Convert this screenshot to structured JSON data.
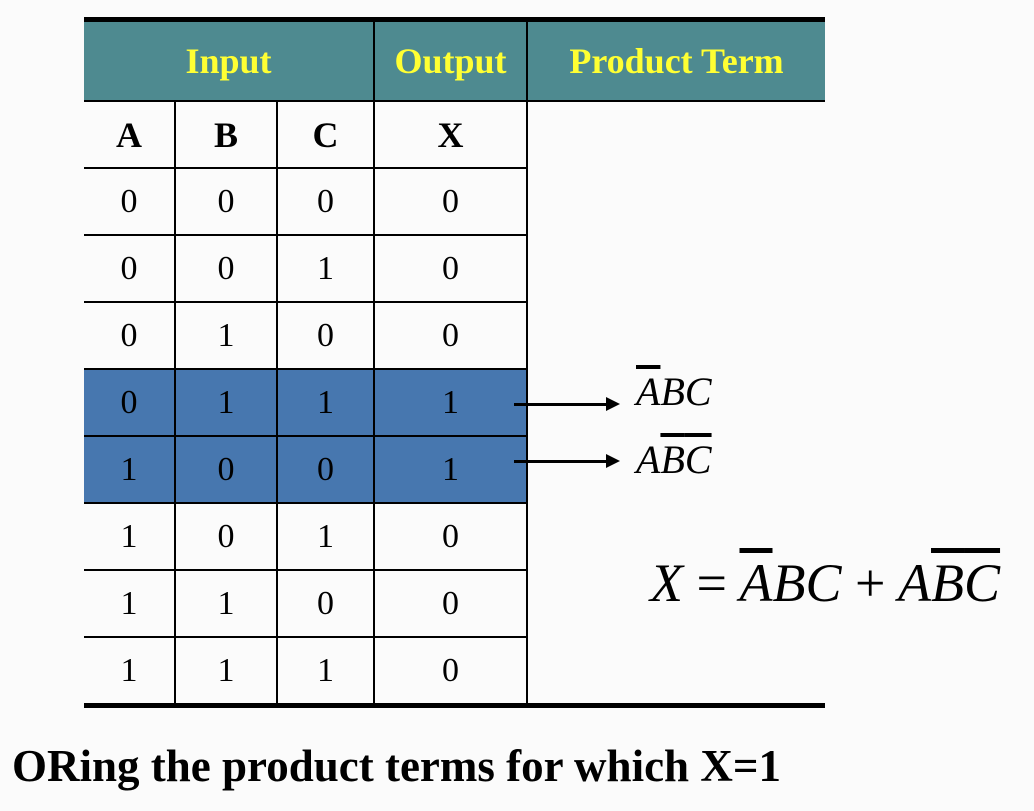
{
  "header": {
    "input": "Input",
    "output": "Output",
    "product_term": "Product Term"
  },
  "vars": [
    "A",
    "B",
    "C",
    "X"
  ],
  "rows": [
    [
      "0",
      "0",
      "0",
      "0"
    ],
    [
      "0",
      "0",
      "1",
      "0"
    ],
    [
      "0",
      "1",
      "0",
      "0"
    ],
    [
      "0",
      "1",
      "1",
      "1"
    ],
    [
      "1",
      "0",
      "0",
      "1"
    ],
    [
      "1",
      "0",
      "1",
      "0"
    ],
    [
      "1",
      "1",
      "0",
      "0"
    ],
    [
      "1",
      "1",
      "1",
      "0"
    ]
  ],
  "highlighted_rows": [
    3,
    4
  ],
  "highlight_color": "#4777af",
  "header_color": "#4e8a90",
  "header_text_color": "#ffff33",
  "terms": {
    "t1": {
      "a": "A",
      "bc": "BC"
    },
    "t2": {
      "a": "A",
      "b": "B",
      "c": "C"
    }
  },
  "equation": {
    "lhs": "X",
    "eq": "=",
    "a1": "A",
    "bc1": "BC",
    "plus": "+",
    "a2": "A",
    "b2": "B",
    "c2": "C"
  },
  "caption": "ORing the product terms for which X=1"
}
